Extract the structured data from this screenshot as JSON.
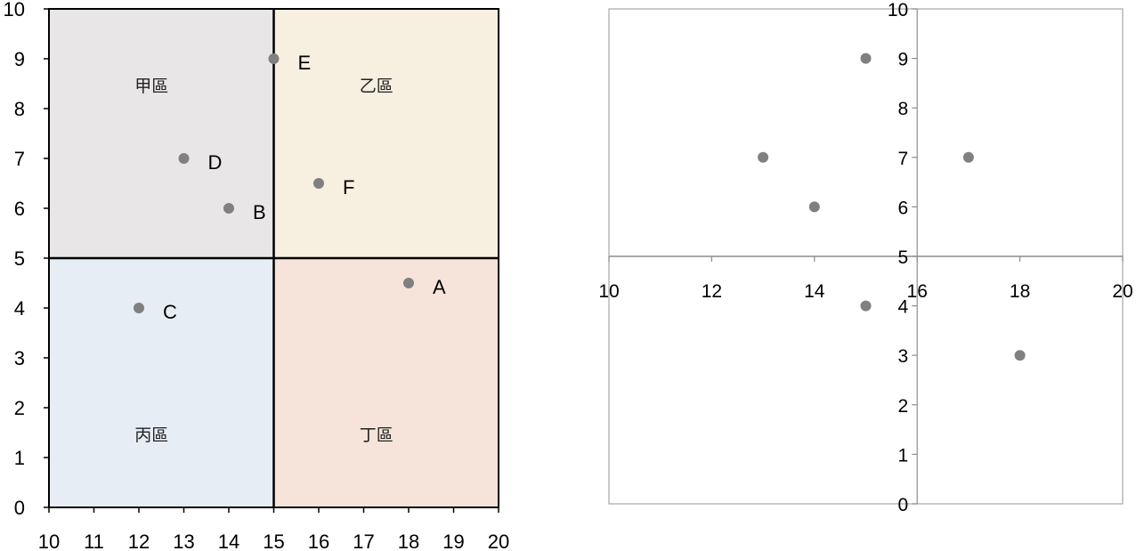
{
  "chart_data": [
    {
      "type": "scatter",
      "title": "",
      "xlabel": "",
      "ylabel": "",
      "xlim": [
        10,
        20
      ],
      "ylim": [
        0,
        10
      ],
      "x_ticks": [
        "10",
        "11",
        "12",
        "13",
        "14",
        "15",
        "16",
        "17",
        "18",
        "19",
        "20"
      ],
      "y_ticks": [
        "0",
        "1",
        "2",
        "3",
        "4",
        "5",
        "6",
        "7",
        "8",
        "9",
        "10"
      ],
      "divider": {
        "x": 15,
        "y": 5
      },
      "zones": [
        {
          "label": "甲區",
          "x": [
            10,
            15
          ],
          "y": [
            5,
            10
          ],
          "color": "#e9e6e7"
        },
        {
          "label": "乙區",
          "x": [
            15,
            20
          ],
          "y": [
            5,
            10
          ],
          "color": "#f7efdf"
        },
        {
          "label": "丙區",
          "x": [
            10,
            15
          ],
          "y": [
            0,
            5
          ],
          "color": "#e7edf4"
        },
        {
          "label": "丁區",
          "x": [
            15,
            20
          ],
          "y": [
            0,
            5
          ],
          "color": "#f6e4da"
        }
      ],
      "points": [
        {
          "label": "A",
          "x": 18,
          "y": 4.5
        },
        {
          "label": "B",
          "x": 14,
          "y": 6
        },
        {
          "label": "C",
          "x": 12,
          "y": 4
        },
        {
          "label": "D",
          "x": 13,
          "y": 7
        },
        {
          "label": "E",
          "x": 15,
          "y": 9
        },
        {
          "label": "F",
          "x": 16,
          "y": 6.5
        }
      ],
      "point_color": "#808080",
      "grid": false
    },
    {
      "type": "scatter",
      "title": "",
      "xlabel": "",
      "ylabel": "",
      "xlim": [
        10,
        20
      ],
      "ylim": [
        0,
        10
      ],
      "x_ticks": [
        "10",
        "12",
        "14",
        "16",
        "18",
        "20"
      ],
      "y_ticks": [
        "0",
        "1",
        "2",
        "3",
        "4",
        "5",
        "6",
        "7",
        "8",
        "9",
        "10"
      ],
      "axes_cross": {
        "x": 16,
        "y": 5
      },
      "points": [
        {
          "x": 13,
          "y": 7
        },
        {
          "x": 14,
          "y": 6
        },
        {
          "x": 15,
          "y": 9
        },
        {
          "x": 15,
          "y": 4
        },
        {
          "x": 17,
          "y": 7
        },
        {
          "x": 18,
          "y": 3
        }
      ],
      "point_color": "#808080",
      "grid": false
    }
  ]
}
